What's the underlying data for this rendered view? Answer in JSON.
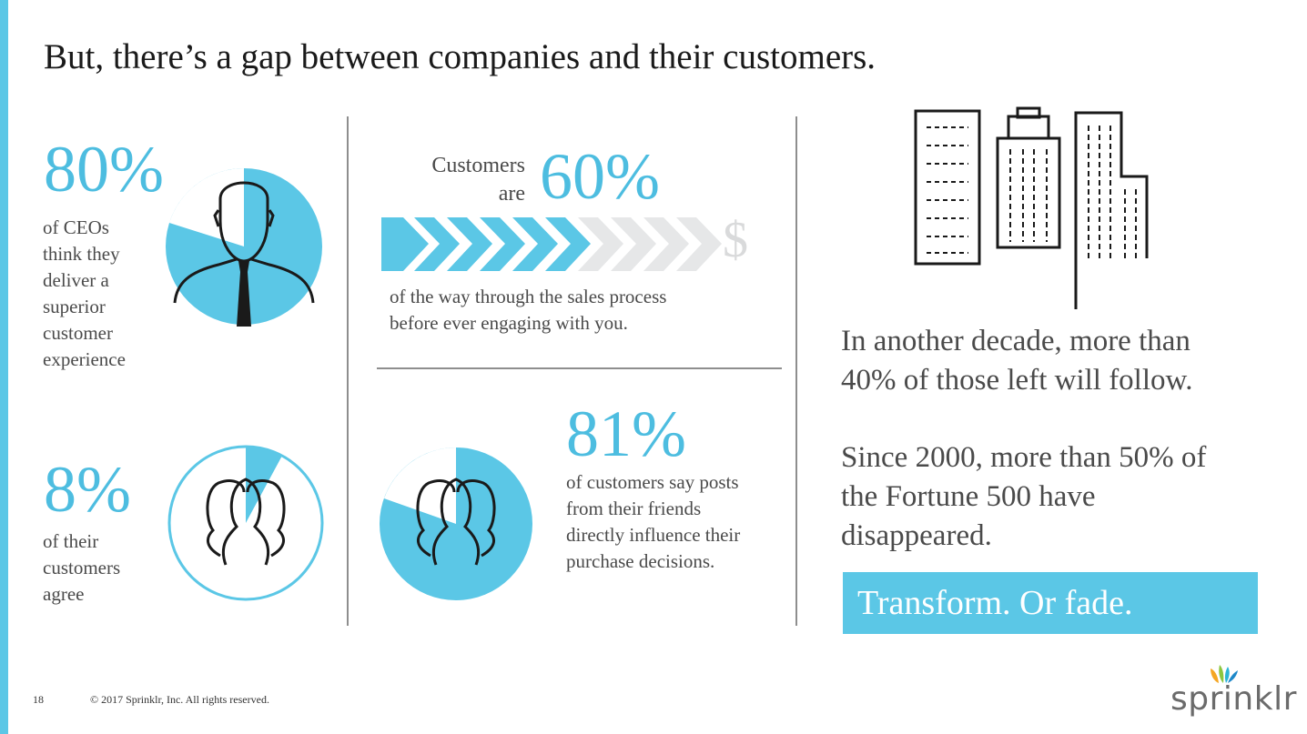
{
  "title": "But, there’s a gap between companies and their customers.",
  "stat_ceo": {
    "value": "80%",
    "lines": [
      "of CEOs",
      "think they",
      "deliver a",
      "superior",
      "customer",
      "experience"
    ],
    "fill_fraction": 0.8
  },
  "stat_customers_agree": {
    "value": "8%",
    "lines": [
      "of their",
      "customers",
      "agree"
    ],
    "fill_fraction": 0.08
  },
  "stat_sales": {
    "prefix_lines": [
      "Customers",
      "are"
    ],
    "value": "60%",
    "lines": [
      "of the way through the sales process",
      "before ever engaging with you."
    ],
    "progress_fraction": 0.6,
    "end_symbol": "$"
  },
  "stat_friends": {
    "value": "81%",
    "lines": [
      "of customers say posts",
      "from their friends",
      "directly influence their",
      "purchase decisions."
    ],
    "fill_fraction": 0.81
  },
  "right": {
    "para1": [
      "In another decade, more than",
      "40% of those left will follow."
    ],
    "para2": [
      "Since 2000, more than 50% of",
      "the Fortune 500 have",
      "disappeared."
    ],
    "cta": "Transform. Or fade."
  },
  "footer": {
    "page": "18",
    "copyright": "© 2017 Sprinklr, Inc. All rights reserved."
  },
  "logo": {
    "text": "sprinklr"
  },
  "colors": {
    "accent": "#5bc7e6",
    "text": "#4a4a4a",
    "light_gray": "#e6e7e8"
  },
  "icons": [
    "businessman-pie-icon",
    "people-group-pie-icon",
    "progress-chevrons-icon",
    "buildings-icon",
    "sprinklr-logo-icon"
  ]
}
